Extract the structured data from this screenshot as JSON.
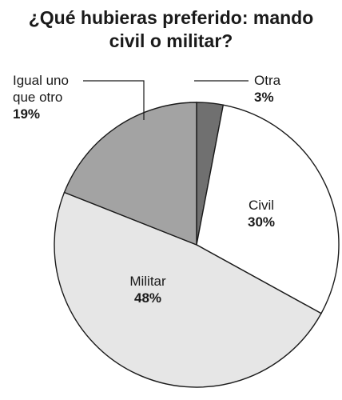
{
  "title_line1": "¿Qué hubieras preferido: mando",
  "title_line2": "civil o militar?",
  "chart_data": {
    "type": "pie",
    "title": "¿Qué hubieras preferido: mando civil o militar?",
    "slices": [
      {
        "name": "Otra",
        "value": 3,
        "pct_label": "3%",
        "color": "#707070"
      },
      {
        "name": "Civil",
        "value": 30,
        "pct_label": "30%",
        "color": "#ffffff"
      },
      {
        "name": "Militar",
        "value": 48,
        "pct_label": "48%",
        "color": "#e6e6e6"
      },
      {
        "name": "Igual uno que otro",
        "name_lines": [
          "Igual uno",
          "que otro"
        ],
        "value": 19,
        "pct_label": "19%",
        "color": "#a3a3a3"
      }
    ],
    "start_angle_deg": 0,
    "direction": "clockwise",
    "outline_color": "#1a1a1a",
    "legend": "none"
  }
}
